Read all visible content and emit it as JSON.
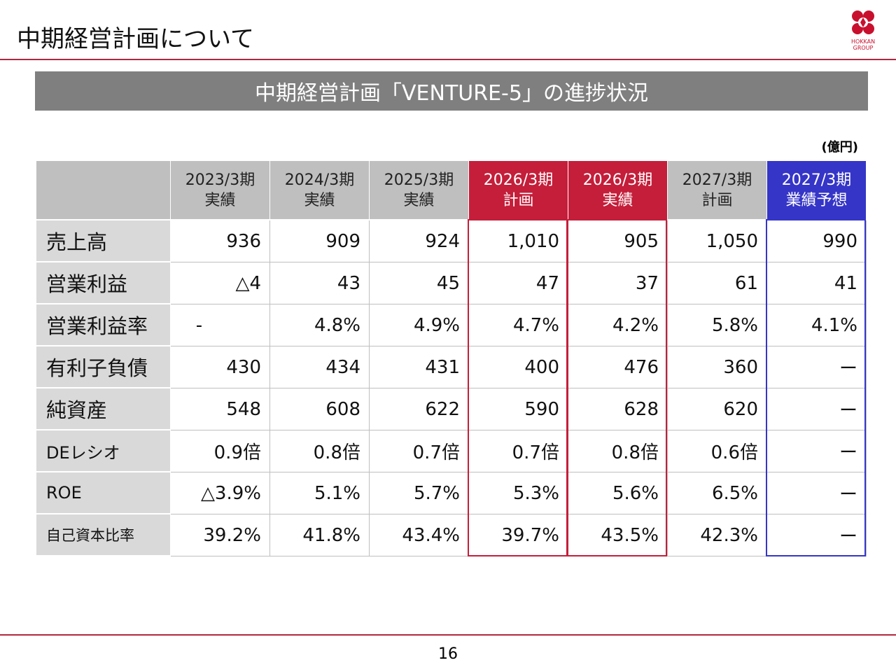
{
  "header": {
    "title": "中期経営計画について",
    "logo": [
      "HOKKAN",
      "GROUP"
    ]
  },
  "banner": "中期経営計画「VENTURE-5」の進捗状況",
  "unit": "(億円)",
  "table": {
    "columns": [
      [
        "2023/3期",
        "実績"
      ],
      [
        "2024/3期",
        "実績"
      ],
      [
        "2025/3期",
        "実績"
      ],
      [
        "2026/3期",
        "計画"
      ],
      [
        "2026/3期",
        "実績"
      ],
      [
        "2027/3期",
        "計画"
      ],
      [
        "2027/3期",
        "業績予想"
      ]
    ],
    "rows": [
      {
        "label": "売上高",
        "cells": [
          "936",
          "909",
          "924",
          "1,010",
          "905",
          "1,050",
          "990"
        ]
      },
      {
        "label": "営業利益",
        "cells": [
          "△4",
          "43",
          "45",
          "47",
          "37",
          "61",
          "41"
        ]
      },
      {
        "label": "営業利益率",
        "cells": [
          "-",
          "4.8%",
          "4.9%",
          "4.7%",
          "4.2%",
          "5.8%",
          "4.1%"
        ]
      },
      {
        "label": "有利子負債",
        "cells": [
          "430",
          "434",
          "431",
          "400",
          "476",
          "360",
          "ー"
        ]
      },
      {
        "label": "純資産",
        "cells": [
          "548",
          "608",
          "622",
          "590",
          "628",
          "620",
          "ー"
        ]
      },
      {
        "label": "DEレシオ",
        "cells": [
          "0.9倍",
          "0.8倍",
          "0.7倍",
          "0.7倍",
          "0.8倍",
          "0.6倍",
          "ー"
        ]
      },
      {
        "label": "ROE",
        "cells": [
          "△3.9%",
          "5.1%",
          "5.7%",
          "5.3%",
          "5.6%",
          "6.5%",
          "ー"
        ]
      },
      {
        "label": "自己資本比率",
        "cells": [
          "39.2%",
          "41.8%",
          "43.4%",
          "39.7%",
          "43.5%",
          "42.3%",
          "ー"
        ]
      }
    ]
  },
  "footer": {
    "page": "16"
  }
}
